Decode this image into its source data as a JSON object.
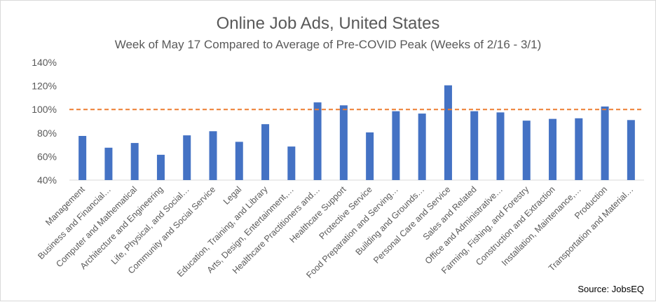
{
  "chart_data": {
    "type": "bar",
    "title": "Online Job Ads, United States",
    "subtitle": "Week of May 17 Compared to Average of Pre-COVID Peak (Weeks of 2/16 - 3/1)",
    "source": "Source: JobsEQ",
    "xlabel": "",
    "ylabel": "",
    "ylim": [
      40,
      140
    ],
    "yticks": [
      40,
      60,
      80,
      100,
      120,
      140
    ],
    "ytick_labels": [
      "40%",
      "60%",
      "80%",
      "100%",
      "120%",
      "140%"
    ],
    "reference_line": {
      "value": 100,
      "style": "dashed",
      "color": "#ED7D31"
    },
    "bar_color": "#4472C4",
    "grid": false,
    "legend": "none",
    "categories": [
      "Management",
      "Business and Financial…",
      "Computer and Mathematical",
      "Architecture and Engineering",
      "Life, Physical, and Social…",
      "Community and Social Service",
      "Legal",
      "Education, Training, and Library",
      "Arts, Design, Entertainment,…",
      "Healthcare Practitioners and…",
      "Healthcare Support",
      "Protective Service",
      "Food Preparation and Serving…",
      "Building and Grounds…",
      "Personal Care and Service",
      "Sales and Related",
      "Office and Administrative…",
      "Farming, Fishing, and Forestry",
      "Construction and Extraction",
      "Installation, Maintenance,…",
      "Production",
      "Transportation and Material…"
    ],
    "values": [
      77.5,
      67.5,
      71.5,
      61.5,
      78,
      81.5,
      72.5,
      87.5,
      68.5,
      106,
      103.5,
      80.5,
      98.5,
      96.5,
      120.5,
      98.5,
      97.5,
      90.5,
      92,
      92.5,
      102.5,
      91
    ]
  }
}
